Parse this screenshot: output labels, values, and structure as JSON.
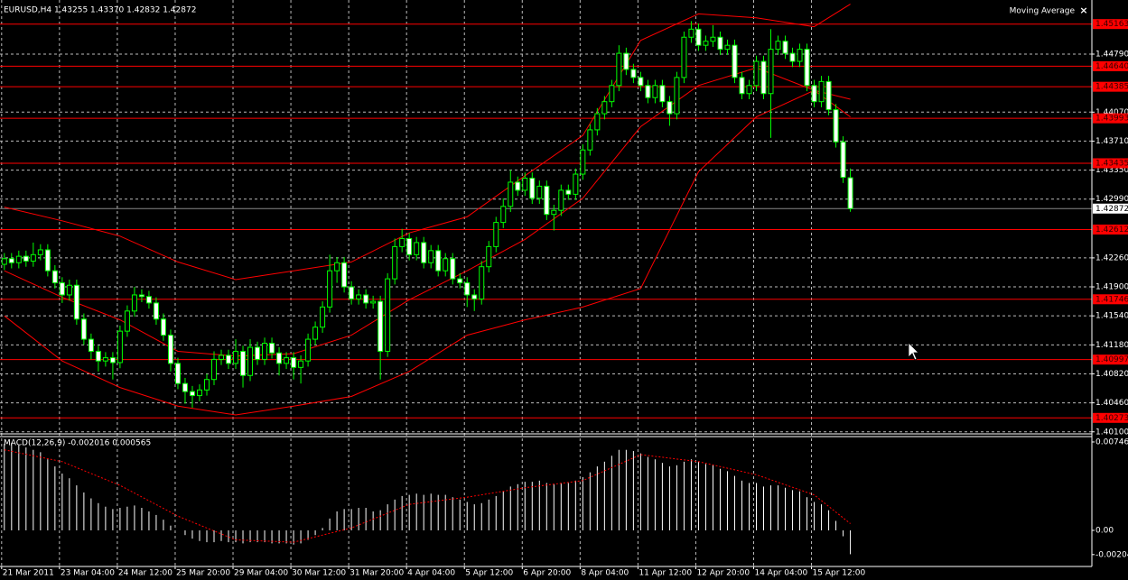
{
  "chart_data": {
    "type": "candlestick",
    "title": "EURUSD,H4  1.43255 1.43370 1.42832 1.42872",
    "indicator_label": "Moving Average",
    "close_label": "×",
    "bull_color": "#000000",
    "bear_color": "#ffffff",
    "wick_color": "#00ff00",
    "grid": true,
    "ylim": [
      1.40086,
      1.45462
    ],
    "xlim": [
      -0.6,
      150.4
    ],
    "yticks": [
      {
        "value": 1.4479,
        "label": "1.44790"
      },
      {
        "value": 1.4407,
        "label": "1.44070"
      },
      {
        "value": 1.4371,
        "label": "1.43710"
      },
      {
        "value": 1.4335,
        "label": "1.43350"
      },
      {
        "value": 1.4299,
        "label": "1.42990"
      },
      {
        "value": 1.4226,
        "label": "1.42260"
      },
      {
        "value": 1.419,
        "label": "1.41900"
      },
      {
        "value": 1.4154,
        "label": "1.41540"
      },
      {
        "value": 1.4118,
        "label": "1.41180"
      },
      {
        "value": 1.4082,
        "label": "1.40820"
      },
      {
        "value": 1.4046,
        "label": "1.40460"
      },
      {
        "value": 1.401,
        "label": "1.40100"
      }
    ],
    "xticks": [
      {
        "value": 0,
        "label": "21 Mar 2011"
      },
      {
        "value": 8,
        "label": "23 Mar 04:00"
      },
      {
        "value": 16,
        "label": "24 Mar 12:00"
      },
      {
        "value": 24,
        "label": "25 Mar 20:00"
      },
      {
        "value": 32,
        "label": "29 Mar 04:00"
      },
      {
        "value": 40,
        "label": "30 Mar 12:00"
      },
      {
        "value": 48,
        "label": "31 Mar 20:00"
      },
      {
        "value": 56,
        "label": "4 Apr 04:00"
      },
      {
        "value": 64,
        "label": "5 Apr 12:00"
      },
      {
        "value": 72,
        "label": "6 Apr 20:00"
      },
      {
        "value": 80,
        "label": "8 Apr 04:00"
      },
      {
        "value": 88,
        "label": "11 Apr 12:00"
      },
      {
        "value": 96,
        "label": "12 Apr 20:00"
      },
      {
        "value": 104,
        "label": "14 Apr 04:00"
      },
      {
        "value": 112,
        "label": "15 Apr 12:00"
      }
    ],
    "levels_color": "#ff0000",
    "levels": [
      1.45163,
      {
        "value": 1.4464,
        "label": "1.44640"
      },
      1.44385,
      1.43993,
      1.43435,
      1.42612,
      1.41746,
      1.40997,
      1.40273
    ],
    "last_price": 1.42872,
    "ohlc": [
      [
        1.4218,
        1.4232,
        1.4211,
        1.4225
      ],
      [
        1.4225,
        1.4232,
        1.4213,
        1.422
      ],
      [
        1.422,
        1.4235,
        1.4213,
        1.4228
      ],
      [
        1.4228,
        1.4235,
        1.4215,
        1.4222
      ],
      [
        1.4222,
        1.4245,
        1.4215,
        1.423
      ],
      [
        1.423,
        1.4243,
        1.4223,
        1.4236
      ],
      [
        1.4236,
        1.4243,
        1.4203,
        1.421
      ],
      [
        1.421,
        1.4217,
        1.4188,
        1.4195
      ],
      [
        1.4195,
        1.4202,
        1.417,
        1.418
      ],
      [
        1.418,
        1.4199,
        1.4173,
        1.4192
      ],
      [
        1.4192,
        1.4199,
        1.4143,
        1.415
      ],
      [
        1.415,
        1.4157,
        1.4118,
        1.4125
      ],
      [
        1.4125,
        1.4132,
        1.41,
        1.411
      ],
      [
        1.411,
        1.4117,
        1.4085,
        1.4098
      ],
      [
        1.4098,
        1.4109,
        1.4091,
        1.4102
      ],
      [
        1.4102,
        1.4109,
        1.4075,
        1.4096
      ],
      [
        1.4096,
        1.4142,
        1.4089,
        1.4135
      ],
      [
        1.4135,
        1.4167,
        1.4128,
        1.416
      ],
      [
        1.416,
        1.419,
        1.4153,
        1.418
      ],
      [
        1.418,
        1.4187,
        1.4171,
        1.4178
      ],
      [
        1.4178,
        1.4185,
        1.4163,
        1.417
      ],
      [
        1.417,
        1.4177,
        1.4143,
        1.415
      ],
      [
        1.415,
        1.4157,
        1.4123,
        1.413
      ],
      [
        1.413,
        1.4137,
        1.4085,
        1.4095
      ],
      [
        1.4095,
        1.4102,
        1.4063,
        1.407
      ],
      [
        1.407,
        1.4077,
        1.4045,
        1.406
      ],
      [
        1.406,
        1.4067,
        1.404,
        1.4055
      ],
      [
        1.4055,
        1.4069,
        1.4048,
        1.4062
      ],
      [
        1.4062,
        1.4082,
        1.4055,
        1.4075
      ],
      [
        1.4075,
        1.411,
        1.4068,
        1.41
      ],
      [
        1.41,
        1.4112,
        1.4093,
        1.4105
      ],
      [
        1.4105,
        1.4112,
        1.4088,
        1.4095
      ],
      [
        1.4095,
        1.4125,
        1.4088,
        1.411
      ],
      [
        1.411,
        1.4117,
        1.4065,
        1.408
      ],
      [
        1.408,
        1.4125,
        1.4073,
        1.4115
      ],
      [
        1.4115,
        1.4122,
        1.4093,
        1.41
      ],
      [
        1.41,
        1.4127,
        1.4093,
        1.412
      ],
      [
        1.412,
        1.4127,
        1.4101,
        1.4108
      ],
      [
        1.4108,
        1.4115,
        1.408,
        1.4095
      ],
      [
        1.4095,
        1.4109,
        1.4088,
        1.4102
      ],
      [
        1.4102,
        1.4109,
        1.4075,
        1.409
      ],
      [
        1.409,
        1.4105,
        1.407,
        1.4098
      ],
      [
        1.4098,
        1.4132,
        1.4091,
        1.4125
      ],
      [
        1.4125,
        1.4147,
        1.4118,
        1.414
      ],
      [
        1.414,
        1.4172,
        1.4133,
        1.4165
      ],
      [
        1.4165,
        1.423,
        1.4158,
        1.421
      ],
      [
        1.421,
        1.4227,
        1.4195,
        1.422
      ],
      [
        1.422,
        1.4227,
        1.4183,
        1.419
      ],
      [
        1.419,
        1.4197,
        1.4168,
        1.4175
      ],
      [
        1.4175,
        1.4187,
        1.4168,
        1.418
      ],
      [
        1.418,
        1.4187,
        1.4163,
        1.417
      ],
      [
        1.417,
        1.4179,
        1.4163,
        1.4172
      ],
      [
        1.4172,
        1.4179,
        1.4075,
        1.411
      ],
      [
        1.411,
        1.4207,
        1.4103,
        1.42
      ],
      [
        1.42,
        1.425,
        1.4193,
        1.424
      ],
      [
        1.424,
        1.4262,
        1.4233,
        1.425
      ],
      [
        1.425,
        1.4257,
        1.4223,
        1.423
      ],
      [
        1.423,
        1.4252,
        1.4223,
        1.4245
      ],
      [
        1.4245,
        1.4252,
        1.4213,
        1.422
      ],
      [
        1.422,
        1.4242,
        1.4213,
        1.4235
      ],
      [
        1.4235,
        1.4242,
        1.4203,
        1.421
      ],
      [
        1.421,
        1.4232,
        1.4203,
        1.4225
      ],
      [
        1.4225,
        1.4232,
        1.4193,
        1.42
      ],
      [
        1.42,
        1.4207,
        1.4188,
        1.4195
      ],
      [
        1.4195,
        1.4202,
        1.4165,
        1.418
      ],
      [
        1.418,
        1.4187,
        1.416,
        1.4175
      ],
      [
        1.4175,
        1.4222,
        1.4168,
        1.4215
      ],
      [
        1.4215,
        1.4247,
        1.4208,
        1.424
      ],
      [
        1.424,
        1.4277,
        1.4233,
        1.427
      ],
      [
        1.427,
        1.43,
        1.4263,
        1.429
      ],
      [
        1.429,
        1.4335,
        1.4283,
        1.432
      ],
      [
        1.432,
        1.4327,
        1.4303,
        1.431
      ],
      [
        1.431,
        1.4332,
        1.4303,
        1.4325
      ],
      [
        1.4325,
        1.4332,
        1.4293,
        1.43
      ],
      [
        1.43,
        1.4322,
        1.4293,
        1.4315
      ],
      [
        1.4315,
        1.4322,
        1.4273,
        1.428
      ],
      [
        1.428,
        1.4292,
        1.426,
        1.4285
      ],
      [
        1.4285,
        1.4317,
        1.4278,
        1.431
      ],
      [
        1.431,
        1.4317,
        1.4298,
        1.4305
      ],
      [
        1.4305,
        1.4337,
        1.4298,
        1.433
      ],
      [
        1.433,
        1.4367,
        1.4323,
        1.436
      ],
      [
        1.436,
        1.4392,
        1.4353,
        1.4385
      ],
      [
        1.4385,
        1.4412,
        1.4378,
        1.4405
      ],
      [
        1.4405,
        1.4427,
        1.4398,
        1.442
      ],
      [
        1.442,
        1.4447,
        1.4413,
        1.444
      ],
      [
        1.444,
        1.449,
        1.4433,
        1.448
      ],
      [
        1.448,
        1.4487,
        1.4453,
        1.446
      ],
      [
        1.446,
        1.4467,
        1.4443,
        1.445
      ],
      [
        1.445,
        1.4457,
        1.4433,
        1.444
      ],
      [
        1.444,
        1.4447,
        1.4418,
        1.4425
      ],
      [
        1.4425,
        1.4447,
        1.4418,
        1.444
      ],
      [
        1.444,
        1.4447,
        1.4413,
        1.442
      ],
      [
        1.442,
        1.4427,
        1.439,
        1.4405
      ],
      [
        1.4405,
        1.4457,
        1.4398,
        1.445
      ],
      [
        1.445,
        1.4507,
        1.4443,
        1.45
      ],
      [
        1.45,
        1.452,
        1.4493,
        1.451
      ],
      [
        1.451,
        1.4517,
        1.4483,
        1.449
      ],
      [
        1.449,
        1.4502,
        1.4483,
        1.4495
      ],
      [
        1.4495,
        1.4515,
        1.4488,
        1.45
      ],
      [
        1.45,
        1.4507,
        1.4478,
        1.4485
      ],
      [
        1.4485,
        1.4497,
        1.4478,
        1.449
      ],
      [
        1.449,
        1.4497,
        1.4443,
        1.445
      ],
      [
        1.445,
        1.4457,
        1.4423,
        1.443
      ],
      [
        1.443,
        1.4447,
        1.4423,
        1.444
      ],
      [
        1.444,
        1.4477,
        1.4433,
        1.447
      ],
      [
        1.447,
        1.4477,
        1.4423,
        1.443
      ],
      [
        1.443,
        1.451,
        1.4375,
        1.4485
      ],
      [
        1.4485,
        1.4502,
        1.4478,
        1.4495
      ],
      [
        1.4495,
        1.4502,
        1.4473,
        1.448
      ],
      [
        1.448,
        1.4487,
        1.4463,
        1.447
      ],
      [
        1.447,
        1.4492,
        1.4463,
        1.4485
      ],
      [
        1.4485,
        1.4492,
        1.4433,
        1.444
      ],
      [
        1.444,
        1.4447,
        1.4413,
        1.442
      ],
      [
        1.442,
        1.4452,
        1.4413,
        1.4445
      ],
      [
        1.4445,
        1.4452,
        1.4403,
        1.441
      ],
      [
        1.441,
        1.4417,
        1.4363,
        1.437
      ],
      [
        1.437,
        1.4377,
        1.4319,
        1.4326
      ],
      [
        1.43255,
        1.4337,
        1.42832,
        1.42872
      ]
    ],
    "bands": {
      "color": "#ff0000",
      "x": [
        0,
        8,
        16,
        24,
        32,
        40,
        48,
        56,
        64,
        72,
        80,
        88,
        96,
        104,
        112,
        117
      ],
      "upper": [
        1.4289,
        1.4272,
        1.4253,
        1.4221,
        1.4199,
        1.421,
        1.4221,
        1.4257,
        1.4277,
        1.4328,
        1.4378,
        1.4496,
        1.4529,
        1.4524,
        1.4513,
        1.4541
      ],
      "middle": [
        1.421,
        1.4177,
        1.4149,
        1.411,
        1.4104,
        1.4107,
        1.413,
        1.4174,
        1.421,
        1.4249,
        1.43,
        1.4389,
        1.444,
        1.4462,
        1.4434,
        1.4401
      ],
      "lower": [
        1.4154,
        1.4098,
        1.4065,
        1.4042,
        1.4031,
        1.4042,
        1.4054,
        1.4085,
        1.413,
        1.4149,
        1.4165,
        1.4188,
        1.4333,
        1.4401,
        1.4434,
        1.4423
      ]
    },
    "macd": {
      "label": "MACD(12,26,9) -0.002016 0.000565",
      "ylim": [
        -0.00305,
        0.00792
      ],
      "yticks": [
        0.007465,
        {
          "value": 0,
          "label": "0.00"
        },
        -0.002046
      ],
      "histogram_color": "#ffffff",
      "signal_color": "#ff0000",
      "histogram": [
        0.0073,
        0.0074,
        0.0072,
        0.007,
        0.0068,
        0.0066,
        0.006,
        0.0054,
        0.0048,
        0.0044,
        0.0038,
        0.0032,
        0.0027,
        0.0023,
        0.002,
        0.0018,
        0.0019,
        0.002,
        0.0021,
        0.0019,
        0.0016,
        0.0013,
        0.0009,
        0.0004,
        0,
        -0.0004,
        -0.0007,
        -0.0009,
        -0.001,
        -0.001,
        -0.0009,
        -0.001,
        -0.001,
        -0.0011,
        -0.001,
        -0.001,
        -0.001,
        -0.0011,
        -0.0011,
        -0.0011,
        -0.0012,
        -0.0011,
        -0.0008,
        -0.0004,
        0.0002,
        0.001,
        0.0016,
        0.0018,
        0.0018,
        0.0019,
        0.0019,
        0.0016,
        0.0017,
        0.0022,
        0.0026,
        0.0029,
        0.003,
        0.0031,
        0.003,
        0.0031,
        0.003,
        0.003,
        0.0028,
        0.0026,
        0.0024,
        0.0022,
        0.0023,
        0.0026,
        0.0029,
        0.0033,
        0.0037,
        0.0039,
        0.0041,
        0.0041,
        0.0042,
        0.004,
        0.0039,
        0.004,
        0.004,
        0.0042,
        0.0045,
        0.0049,
        0.0054,
        0.0058,
        0.0063,
        0.0068,
        0.0068,
        0.0067,
        0.0065,
        0.0062,
        0.006,
        0.0057,
        0.0054,
        0.0055,
        0.0058,
        0.006,
        0.0058,
        0.0056,
        0.0055,
        0.0052,
        0.005,
        0.0046,
        0.0042,
        0.004,
        0.004,
        0.0037,
        0.0038,
        0.0038,
        0.0036,
        0.0034,
        0.0033,
        0.0028,
        0.0024,
        0.0022,
        0.0017,
        0.0008,
        -0.0005,
        -0.002016
      ],
      "signal_x": [
        0,
        8,
        16,
        24,
        32,
        40,
        48,
        56,
        64,
        72,
        80,
        88,
        96,
        104,
        112,
        117
      ],
      "signal": [
        0.0068,
        0.0058,
        0.0038,
        0.0012,
        -0.0008,
        -0.001,
        0.0002,
        0.0022,
        0.0028,
        0.0036,
        0.0042,
        0.0064,
        0.0058,
        0.0047,
        0.003,
        0.000565
      ]
    }
  }
}
